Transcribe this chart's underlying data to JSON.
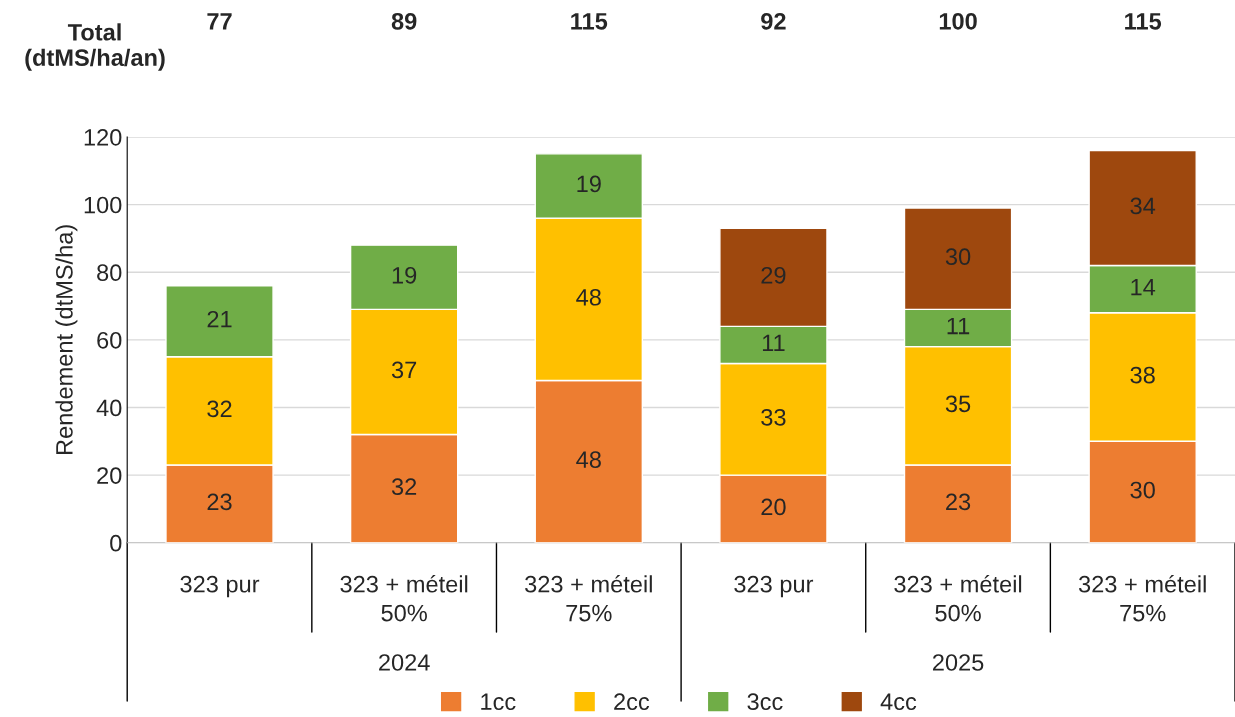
{
  "chart_data": {
    "type": "bar",
    "stacked": true,
    "ylabel": "Rendement (dtMS/ha)",
    "categories": [
      "323 pur",
      "323 + méteil\n50%",
      "323 + méteil\n75%",
      "323 pur",
      "323 + méteil\n50%",
      "323 + méteil\n75%"
    ],
    "series": [
      {
        "name": "1cc",
        "color": "#ed7d31",
        "values": [
          23,
          32,
          48,
          20,
          23,
          30
        ]
      },
      {
        "name": "2cc",
        "color": "#ffc000",
        "values": [
          32,
          37,
          48,
          33,
          35,
          38
        ]
      },
      {
        "name": "3cc",
        "color": "#70ad47",
        "values": [
          21,
          19,
          19,
          11,
          11,
          14
        ]
      },
      {
        "name": "4cc",
        "color": "#9e480e",
        "values": [
          null,
          null,
          null,
          29,
          30,
          34
        ]
      }
    ],
    "data_labels": true,
    "annotations": [
      "Total\n(dtMS/ha/an)",
      "77",
      "89",
      "115",
      "92",
      "100",
      "115",
      "2024",
      "2025"
    ],
    "ylim": [
      0,
      120
    ],
    "yticks": [
      0,
      20,
      40,
      60,
      80,
      100,
      120
    ],
    "grid": "y",
    "legend": "bottom"
  }
}
